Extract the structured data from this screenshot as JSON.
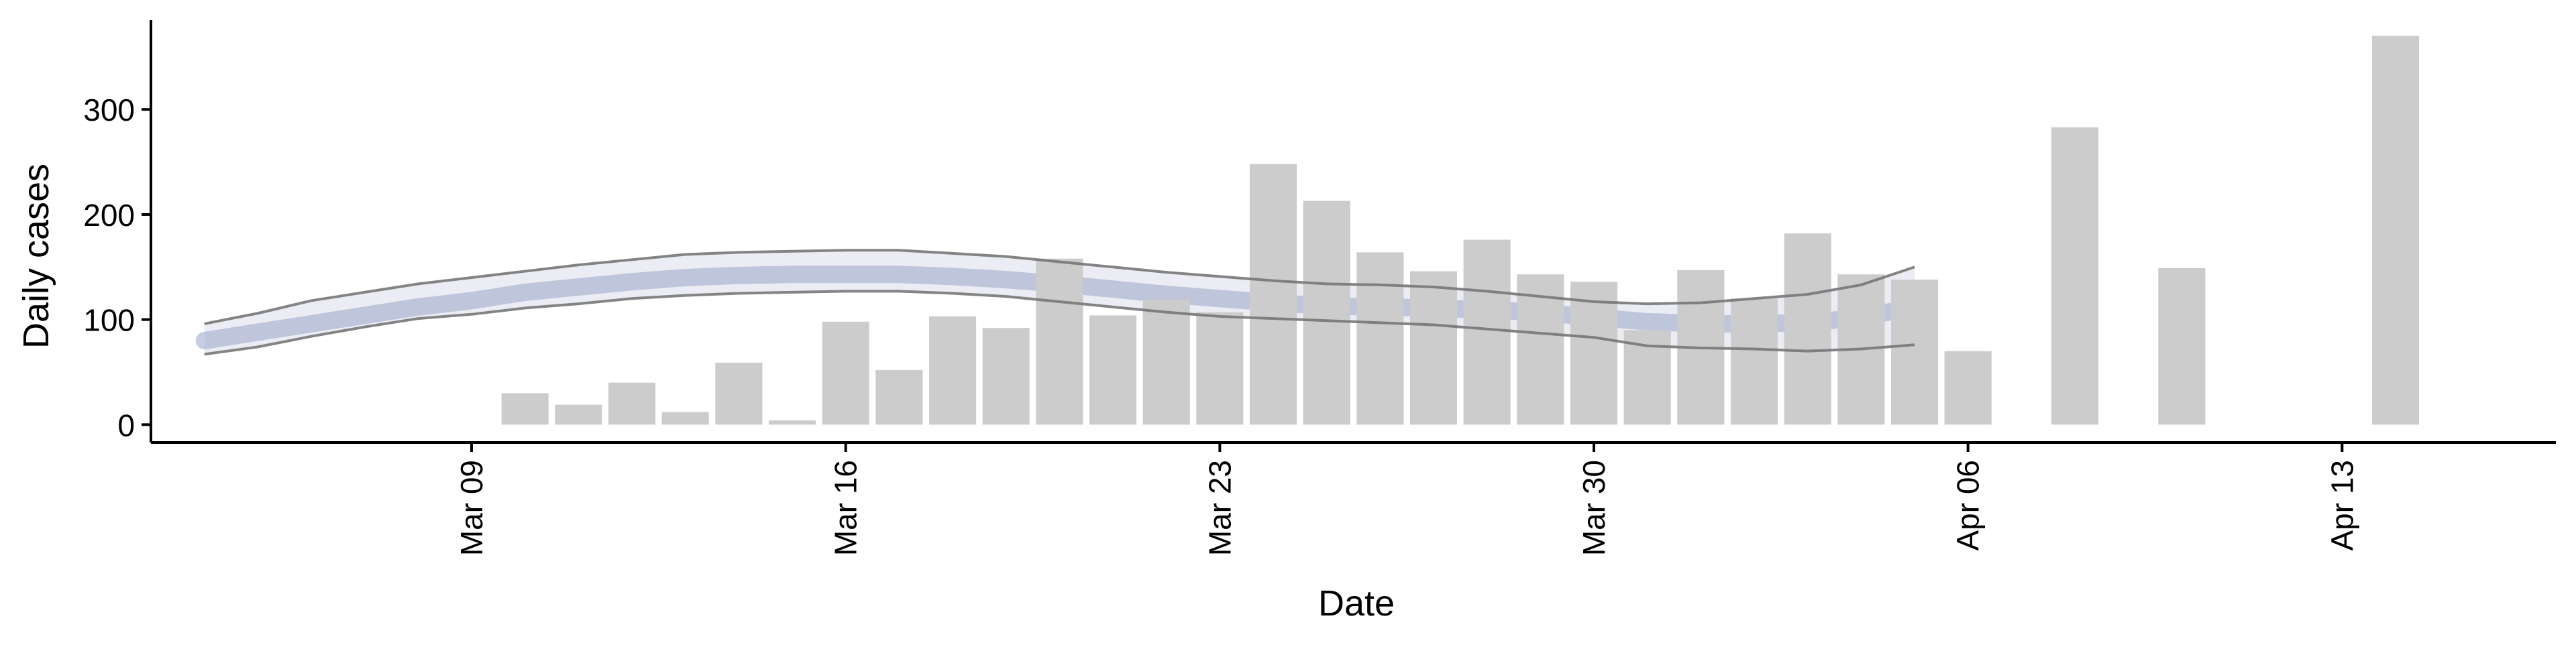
{
  "chart_data": {
    "type": "bar",
    "xlabel": "Date",
    "ylabel": "Daily cases",
    "x_domain": [
      "2020-03-03",
      "2020-04-17"
    ],
    "ylim": [
      -17,
      385
    ],
    "y_ticks": [
      0,
      100,
      200,
      300
    ],
    "x_ticks": [
      {
        "date": "2020-03-09",
        "label": "Mar 09"
      },
      {
        "date": "2020-03-16",
        "label": "Mar 16"
      },
      {
        "date": "2020-03-23",
        "label": "Mar 23"
      },
      {
        "date": "2020-03-30",
        "label": "Mar 30"
      },
      {
        "date": "2020-04-06",
        "label": "Apr 06"
      },
      {
        "date": "2020-04-13",
        "label": "Apr 13"
      }
    ],
    "grid": false,
    "legend": "none",
    "colors": {
      "bars": "#cccccc",
      "band": "#c8ccdf",
      "mean_line": "#9aa6c8",
      "bound_lines": "#777777",
      "axis": "#000000"
    },
    "bars": [
      {
        "date": "2020-03-10",
        "value": 30
      },
      {
        "date": "2020-03-11",
        "value": 19
      },
      {
        "date": "2020-03-12",
        "value": 40
      },
      {
        "date": "2020-03-13",
        "value": 12
      },
      {
        "date": "2020-03-14",
        "value": 59
      },
      {
        "date": "2020-03-15",
        "value": 4
      },
      {
        "date": "2020-03-16",
        "value": 98
      },
      {
        "date": "2020-03-17",
        "value": 52
      },
      {
        "date": "2020-03-18",
        "value": 103
      },
      {
        "date": "2020-03-19",
        "value": 92
      },
      {
        "date": "2020-03-20",
        "value": 158
      },
      {
        "date": "2020-03-21",
        "value": 104
      },
      {
        "date": "2020-03-22",
        "value": 119
      },
      {
        "date": "2020-03-23",
        "value": 107
      },
      {
        "date": "2020-03-24",
        "value": 248
      },
      {
        "date": "2020-03-25",
        "value": 213
      },
      {
        "date": "2020-03-26",
        "value": 164
      },
      {
        "date": "2020-03-27",
        "value": 146
      },
      {
        "date": "2020-03-28",
        "value": 176
      },
      {
        "date": "2020-03-29",
        "value": 143
      },
      {
        "date": "2020-03-30",
        "value": 136
      },
      {
        "date": "2020-03-31",
        "value": 90
      },
      {
        "date": "2020-04-01",
        "value": 147
      },
      {
        "date": "2020-04-02",
        "value": 120
      },
      {
        "date": "2020-04-03",
        "value": 182
      },
      {
        "date": "2020-04-04",
        "value": 143
      },
      {
        "date": "2020-04-05",
        "value": 138
      },
      {
        "date": "2020-04-06",
        "value": 70
      },
      {
        "date": "2020-04-08",
        "value": 283
      },
      {
        "date": "2020-04-10",
        "value": 149
      },
      {
        "date": "2020-04-14",
        "value": 370
      }
    ],
    "estimate": {
      "dates": [
        "2020-03-04",
        "2020-03-05",
        "2020-03-06",
        "2020-03-07",
        "2020-03-08",
        "2020-03-09",
        "2020-03-10",
        "2020-03-11",
        "2020-03-12",
        "2020-03-13",
        "2020-03-14",
        "2020-03-15",
        "2020-03-16",
        "2020-03-17",
        "2020-03-18",
        "2020-03-19",
        "2020-03-20",
        "2020-03-21",
        "2020-03-22",
        "2020-03-23",
        "2020-03-24",
        "2020-03-25",
        "2020-03-26",
        "2020-03-27",
        "2020-03-28",
        "2020-03-29",
        "2020-03-30",
        "2020-03-31",
        "2020-04-01",
        "2020-04-02",
        "2020-04-03",
        "2020-04-04",
        "2020-04-05"
      ],
      "mean": [
        80,
        88,
        96,
        104,
        112,
        118,
        126,
        131,
        136,
        140,
        142,
        143,
        143,
        143,
        141,
        138,
        134,
        129,
        124,
        120,
        116,
        113,
        112,
        111,
        109,
        107,
        102,
        98,
        96,
        96,
        97,
        102,
        112
      ],
      "upper": [
        96,
        106,
        118,
        126,
        134,
        140,
        146,
        152,
        157,
        162,
        164,
        165,
        166,
        166,
        163,
        160,
        155,
        150,
        145,
        141,
        137,
        134,
        133,
        131,
        127,
        122,
        117,
        115,
        116,
        120,
        124,
        133,
        150
      ],
      "lower": [
        67,
        74,
        84,
        93,
        101,
        105,
        111,
        115,
        120,
        123,
        125,
        126,
        127,
        127,
        125,
        122,
        117,
        112,
        107,
        103,
        101,
        99,
        97,
        95,
        91,
        87,
        83,
        75,
        73,
        72,
        70,
        72,
        76
      ]
    }
  }
}
